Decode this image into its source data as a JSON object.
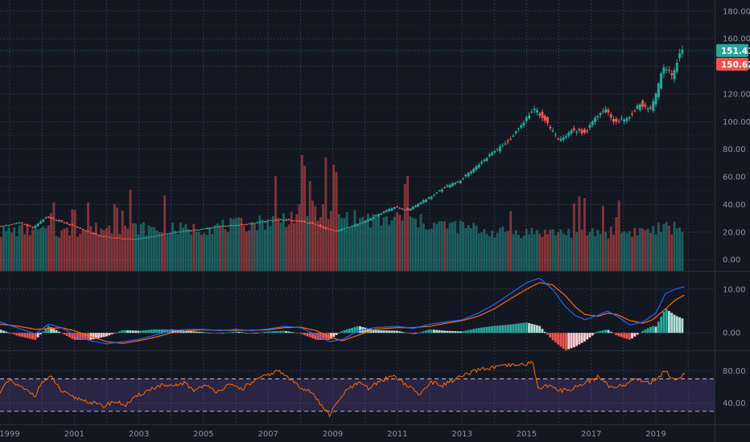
{
  "colors": {
    "background": "#131722",
    "grid": "#3c4152",
    "up": "#26a69a",
    "down": "#ef5350",
    "macd_line": "#2962ff",
    "signal_line": "#ff6d00",
    "rsi_line": "#ff6d00",
    "rsi_band": "#7e57c2",
    "axis_text": "#8f95a3",
    "separator": "#2a2e39"
  },
  "chart_data": [
    {
      "type": "candlestick",
      "panel": "price",
      "y_ticks": [
        "0.00",
        "20.00",
        "40.00",
        "60.00",
        "80.00",
        "100.00",
        "120.00",
        "140.00",
        "160.00",
        "180.00"
      ],
      "ylim": [
        -8,
        188
      ],
      "x_ticks": [
        "1999",
        "2001",
        "2003",
        "2005",
        "2007",
        "2009",
        "2011",
        "2013",
        "2015",
        "2017",
        "2019"
      ],
      "xlim": [
        1998.6,
        2020.4
      ],
      "last_price": "151.41",
      "prev_close": "150.62",
      "price_anchors": [
        [
          1998.7,
          24
        ],
        [
          1999.0,
          25
        ],
        [
          1999.4,
          27
        ],
        [
          1999.8,
          23
        ],
        [
          2000.2,
          31
        ],
        [
          2000.6,
          28
        ],
        [
          2001.0,
          25
        ],
        [
          2001.5,
          20
        ],
        [
          2001.9,
          17
        ],
        [
          2002.3,
          16
        ],
        [
          2002.7,
          15
        ],
        [
          2003.0,
          15
        ],
        [
          2003.5,
          17
        ],
        [
          2004.0,
          19
        ],
        [
          2004.5,
          21
        ],
        [
          2005.0,
          22
        ],
        [
          2005.5,
          24
        ],
        [
          2006.0,
          25
        ],
        [
          2006.5,
          26
        ],
        [
          2007.0,
          28
        ],
        [
          2007.5,
          29
        ],
        [
          2008.0,
          28
        ],
        [
          2008.5,
          26
        ],
        [
          2008.9,
          22
        ],
        [
          2009.2,
          21
        ],
        [
          2009.6,
          24
        ],
        [
          2010.0,
          27
        ],
        [
          2010.5,
          33
        ],
        [
          2011.0,
          38
        ],
        [
          2011.4,
          36
        ],
        [
          2011.7,
          40
        ],
        [
          2012.0,
          44
        ],
        [
          2012.5,
          52
        ],
        [
          2013.0,
          57
        ],
        [
          2013.5,
          67
        ],
        [
          2014.0,
          77
        ],
        [
          2014.5,
          86
        ],
        [
          2015.0,
          100
        ],
        [
          2015.3,
          109
        ],
        [
          2015.6,
          103
        ],
        [
          2015.9,
          92
        ],
        [
          2016.1,
          86
        ],
        [
          2016.5,
          94
        ],
        [
          2016.9,
          92
        ],
        [
          2017.2,
          103
        ],
        [
          2017.5,
          109
        ],
        [
          2017.8,
          100
        ],
        [
          2018.2,
          102
        ],
        [
          2018.6,
          113
        ],
        [
          2018.9,
          108
        ],
        [
          2019.1,
          120
        ],
        [
          2019.3,
          140
        ],
        [
          2019.6,
          133
        ],
        [
          2019.85,
          151
        ]
      ],
      "volume_anchors": [
        [
          1998.7,
          20
        ],
        [
          1999.5,
          22
        ],
        [
          2000.5,
          20
        ],
        [
          2001.5,
          22
        ],
        [
          2002.5,
          24
        ],
        [
          2003.5,
          22
        ],
        [
          2004.5,
          22
        ],
        [
          2005.5,
          24
        ],
        [
          2006.5,
          26
        ],
        [
          2007.5,
          30
        ],
        [
          2008.5,
          36
        ],
        [
          2009.0,
          32
        ],
        [
          2009.5,
          30
        ],
        [
          2010.5,
          28
        ],
        [
          2011.0,
          30
        ],
        [
          2012.0,
          26
        ],
        [
          2013.0,
          24
        ],
        [
          2014.0,
          20
        ],
        [
          2015.0,
          20
        ],
        [
          2016.0,
          20
        ],
        [
          2017.0,
          20
        ],
        [
          2018.0,
          20
        ],
        [
          2019.0,
          22
        ],
        [
          2019.8,
          24
        ]
      ]
    },
    {
      "type": "macd",
      "panel": "macd",
      "y_ticks": [
        "0.00",
        "10.00"
      ],
      "ylim": [
        -4,
        14
      ],
      "macd_anchors": [
        [
          1998.7,
          2.5
        ],
        [
          1999.3,
          1
        ],
        [
          1999.8,
          -0.2
        ],
        [
          2000.2,
          2.0
        ],
        [
          2000.6,
          1.2
        ],
        [
          2001.0,
          -0.5
        ],
        [
          2001.5,
          -1.8
        ],
        [
          2002.0,
          -2.5
        ],
        [
          2002.5,
          -2.0
        ],
        [
          2003.0,
          -1.5
        ],
        [
          2003.5,
          -0.5
        ],
        [
          2004.0,
          0.5
        ],
        [
          2004.5,
          0.8
        ],
        [
          2005.0,
          0.8
        ],
        [
          2005.5,
          0.5
        ],
        [
          2006.0,
          0.8
        ],
        [
          2006.5,
          0.5
        ],
        [
          2007.0,
          0.9
        ],
        [
          2007.5,
          1.5
        ],
        [
          2008.0,
          1.2
        ],
        [
          2008.5,
          -0.5
        ],
        [
          2008.9,
          -2.0
        ],
        [
          2009.3,
          -1.5
        ],
        [
          2009.8,
          0.5
        ],
        [
          2010.3,
          1.2
        ],
        [
          2011.0,
          1.5
        ],
        [
          2011.5,
          1.0
        ],
        [
          2012.0,
          2.0
        ],
        [
          2012.5,
          2.5
        ],
        [
          2013.0,
          3.0
        ],
        [
          2013.5,
          4.5
        ],
        [
          2014.0,
          6.5
        ],
        [
          2014.5,
          9
        ],
        [
          2015.0,
          11.5
        ],
        [
          2015.4,
          12.5
        ],
        [
          2015.8,
          10
        ],
        [
          2016.2,
          6
        ],
        [
          2016.5,
          4
        ],
        [
          2016.8,
          3
        ],
        [
          2017.2,
          4
        ],
        [
          2017.5,
          5
        ],
        [
          2017.8,
          3.8
        ],
        [
          2018.2,
          1.8
        ],
        [
          2018.6,
          2.5
        ],
        [
          2019.0,
          4.5
        ],
        [
          2019.3,
          9
        ],
        [
          2019.6,
          10
        ],
        [
          2019.85,
          10.5
        ]
      ],
      "signal_anchors": [
        [
          1998.7,
          2.0
        ],
        [
          1999.3,
          1.5
        ],
        [
          1999.8,
          0.8
        ],
        [
          2000.2,
          1.0
        ],
        [
          2000.6,
          1.2
        ],
        [
          2001.0,
          0.5
        ],
        [
          2001.5,
          -0.8
        ],
        [
          2002.0,
          -2.0
        ],
        [
          2002.5,
          -2.4
        ],
        [
          2003.0,
          -1.8
        ],
        [
          2003.5,
          -1.0
        ],
        [
          2004.0,
          0.0
        ],
        [
          2004.5,
          0.5
        ],
        [
          2005.0,
          0.7
        ],
        [
          2005.5,
          0.6
        ],
        [
          2006.0,
          0.6
        ],
        [
          2006.5,
          0.6
        ],
        [
          2007.0,
          0.7
        ],
        [
          2007.5,
          1.2
        ],
        [
          2008.0,
          1.3
        ],
        [
          2008.5,
          0.5
        ],
        [
          2008.9,
          -1.0
        ],
        [
          2009.3,
          -1.8
        ],
        [
          2009.8,
          -0.5
        ],
        [
          2010.3,
          0.8
        ],
        [
          2011.0,
          1.2
        ],
        [
          2011.5,
          1.2
        ],
        [
          2012.0,
          1.5
        ],
        [
          2012.5,
          2.2
        ],
        [
          2013.0,
          2.8
        ],
        [
          2013.5,
          3.8
        ],
        [
          2014.0,
          5.5
        ],
        [
          2014.5,
          7.8
        ],
        [
          2015.0,
          10
        ],
        [
          2015.4,
          11.5
        ],
        [
          2015.8,
          11.0
        ],
        [
          2016.2,
          8.5
        ],
        [
          2016.5,
          6.0
        ],
        [
          2016.8,
          4.2
        ],
        [
          2017.2,
          3.8
        ],
        [
          2017.5,
          4.5
        ],
        [
          2017.8,
          4.2
        ],
        [
          2018.2,
          2.8
        ],
        [
          2018.6,
          2.2
        ],
        [
          2018.9,
          3.0
        ],
        [
          2019.3,
          5.5
        ],
        [
          2019.6,
          7.5
        ],
        [
          2019.85,
          8.5
        ]
      ]
    },
    {
      "type": "rsi",
      "panel": "rsi",
      "y_ticks": [
        "40.00",
        "80.00"
      ],
      "ylim": [
        14,
        104
      ],
      "band": [
        30,
        70
      ],
      "rsi_anchors": [
        [
          1998.7,
          55
        ],
        [
          1999.0,
          68
        ],
        [
          1999.4,
          58
        ],
        [
          1999.8,
          50
        ],
        [
          2000.0,
          66
        ],
        [
          2000.3,
          72
        ],
        [
          2000.6,
          55
        ],
        [
          2000.9,
          48
        ],
        [
          2001.2,
          45
        ],
        [
          2001.6,
          40
        ],
        [
          2001.9,
          36
        ],
        [
          2002.2,
          42
        ],
        [
          2002.6,
          38
        ],
        [
          2003.0,
          50
        ],
        [
          2003.4,
          58
        ],
        [
          2003.7,
          62
        ],
        [
          2004.0,
          60
        ],
        [
          2004.4,
          65
        ],
        [
          2004.7,
          56
        ],
        [
          2005.0,
          62
        ],
        [
          2005.4,
          55
        ],
        [
          2005.8,
          62
        ],
        [
          2006.2,
          58
        ],
        [
          2006.6,
          68
        ],
        [
          2007.0,
          75
        ],
        [
          2007.3,
          80
        ],
        [
          2007.6,
          72
        ],
        [
          2008.0,
          60
        ],
        [
          2008.3,
          55
        ],
        [
          2008.6,
          40
        ],
        [
          2008.9,
          25
        ],
        [
          2009.1,
          38
        ],
        [
          2009.4,
          55
        ],
        [
          2009.8,
          65
        ],
        [
          2010.1,
          58
        ],
        [
          2010.5,
          68
        ],
        [
          2010.9,
          74
        ],
        [
          2011.3,
          62
        ],
        [
          2011.7,
          50
        ],
        [
          2012.0,
          66
        ],
        [
          2012.4,
          62
        ],
        [
          2012.8,
          70
        ],
        [
          2013.2,
          76
        ],
        [
          2013.6,
          82
        ],
        [
          2014.0,
          84
        ],
        [
          2014.4,
          86
        ],
        [
          2014.8,
          87
        ],
        [
          2015.2,
          90
        ],
        [
          2015.35,
          58
        ],
        [
          2015.7,
          62
        ],
        [
          2016.0,
          55
        ],
        [
          2016.4,
          58
        ],
        [
          2016.8,
          65
        ],
        [
          2017.2,
          72
        ],
        [
          2017.6,
          60
        ],
        [
          2018.0,
          62
        ],
        [
          2018.4,
          70
        ],
        [
          2018.8,
          65
        ],
        [
          2019.1,
          72
        ],
        [
          2019.3,
          80
        ],
        [
          2019.6,
          68
        ],
        [
          2019.85,
          76
        ]
      ]
    }
  ]
}
